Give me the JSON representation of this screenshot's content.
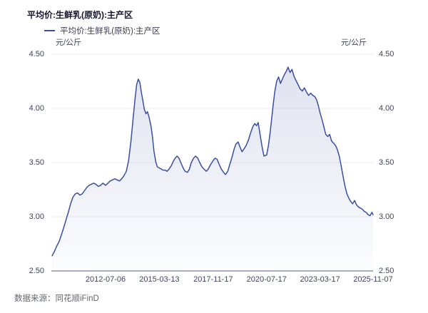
{
  "header": {
    "title": "平均价:生鲜乳(原奶):主产区"
  },
  "legend": {
    "label": "平均价:生鲜乳(原奶):主产区"
  },
  "footer": {
    "source": "数据来源：同花顺iFinD"
  },
  "colors": {
    "line": "#3A4F9E",
    "fill_top": "rgba(61,82,160,0.16)",
    "fill_bottom": "rgba(61,82,160,0.015)",
    "grid": "#EBEDF4",
    "axis": "#A8AEC0",
    "tick_text": "#40445A"
  },
  "chart_data": {
    "type": "area",
    "title": "平均价:生鲜乳(原奶):主产区",
    "ylabel": "元/公斤",
    "xlabel": "",
    "ylim": [
      2.5,
      4.5
    ],
    "grid": true,
    "legend_position": "top-left",
    "y_ticks": [
      "4.50",
      "4.00",
      "3.50",
      "3.00",
      "2.50"
    ],
    "y_tick_values": [
      4.5,
      4.0,
      3.5,
      3.0,
      2.5
    ],
    "x_ticks": [
      "2012-07-06",
      "2015-03-13",
      "2017-11-17",
      "2020-07-17",
      "2023-03-17",
      "2025-11-07"
    ],
    "series": [
      {
        "name": "平均价:生鲜乳(原奶):主产区",
        "points": [
          [
            "2009-11-06",
            2.64
          ],
          [
            "2009-12-18",
            2.68
          ],
          [
            "2010-01-29",
            2.73
          ],
          [
            "2010-03-12",
            2.77
          ],
          [
            "2010-04-23",
            2.83
          ],
          [
            "2010-06-04",
            2.9
          ],
          [
            "2010-07-16",
            2.97
          ],
          [
            "2010-08-27",
            3.04
          ],
          [
            "2010-10-08",
            3.12
          ],
          [
            "2010-11-19",
            3.18
          ],
          [
            "2010-12-31",
            3.21
          ],
          [
            "2011-02-11",
            3.22
          ],
          [
            "2011-03-25",
            3.2
          ],
          [
            "2011-05-06",
            3.21
          ],
          [
            "2011-06-17",
            3.24
          ],
          [
            "2011-07-29",
            3.27
          ],
          [
            "2011-09-09",
            3.29
          ],
          [
            "2011-10-21",
            3.3
          ],
          [
            "2011-12-02",
            3.31
          ],
          [
            "2012-01-13",
            3.3
          ],
          [
            "2012-02-24",
            3.28
          ],
          [
            "2012-04-06",
            3.29
          ],
          [
            "2012-05-18",
            3.31
          ],
          [
            "2012-07-06",
            3.29
          ],
          [
            "2012-08-17",
            3.31
          ],
          [
            "2012-09-28",
            3.33
          ],
          [
            "2012-11-09",
            3.34
          ],
          [
            "2012-12-21",
            3.35
          ],
          [
            "2013-02-01",
            3.34
          ],
          [
            "2013-03-15",
            3.33
          ],
          [
            "2013-04-26",
            3.35
          ],
          [
            "2013-06-07",
            3.38
          ],
          [
            "2013-07-19",
            3.42
          ],
          [
            "2013-08-30",
            3.52
          ],
          [
            "2013-10-11",
            3.7
          ],
          [
            "2013-11-22",
            3.92
          ],
          [
            "2013-12-27",
            4.1
          ],
          [
            "2014-01-24",
            4.22
          ],
          [
            "2014-02-21",
            4.27
          ],
          [
            "2014-03-21",
            4.24
          ],
          [
            "2014-04-18",
            4.15
          ],
          [
            "2014-05-16",
            4.07
          ],
          [
            "2014-06-13",
            3.99
          ],
          [
            "2014-07-11",
            3.95
          ],
          [
            "2014-08-08",
            3.97
          ],
          [
            "2014-09-05",
            3.92
          ],
          [
            "2014-10-10",
            3.84
          ],
          [
            "2014-11-07",
            3.74
          ],
          [
            "2014-12-05",
            3.6
          ],
          [
            "2015-01-09",
            3.5
          ],
          [
            "2015-02-06",
            3.46
          ],
          [
            "2015-03-13",
            3.45
          ],
          [
            "2015-04-17",
            3.44
          ],
          [
            "2015-05-22",
            3.43
          ],
          [
            "2015-06-26",
            3.43
          ],
          [
            "2015-07-31",
            3.42
          ],
          [
            "2015-09-04",
            3.44
          ],
          [
            "2015-10-16",
            3.47
          ],
          [
            "2015-11-20",
            3.51
          ],
          [
            "2015-12-25",
            3.54
          ],
          [
            "2016-01-29",
            3.56
          ],
          [
            "2016-03-04",
            3.54
          ],
          [
            "2016-04-15",
            3.49
          ],
          [
            "2016-05-20",
            3.45
          ],
          [
            "2016-06-24",
            3.42
          ],
          [
            "2016-08-05",
            3.41
          ],
          [
            "2016-09-09",
            3.44
          ],
          [
            "2016-10-14",
            3.5
          ],
          [
            "2016-11-25",
            3.54
          ],
          [
            "2016-12-30",
            3.56
          ],
          [
            "2017-02-10",
            3.54
          ],
          [
            "2017-03-17",
            3.5
          ],
          [
            "2017-04-28",
            3.46
          ],
          [
            "2017-06-02",
            3.44
          ],
          [
            "2017-07-14",
            3.42
          ],
          [
            "2017-08-18",
            3.44
          ],
          [
            "2017-09-29",
            3.48
          ],
          [
            "2017-11-17",
            3.52
          ],
          [
            "2017-12-22",
            3.54
          ],
          [
            "2018-01-26",
            3.53
          ],
          [
            "2018-03-09",
            3.48
          ],
          [
            "2018-04-13",
            3.44
          ],
          [
            "2018-05-25",
            3.41
          ],
          [
            "2018-06-29",
            3.39
          ],
          [
            "2018-08-10",
            3.42
          ],
          [
            "2018-09-14",
            3.48
          ],
          [
            "2018-10-26",
            3.55
          ],
          [
            "2018-11-30",
            3.62
          ],
          [
            "2019-01-04",
            3.67
          ],
          [
            "2019-02-15",
            3.69
          ],
          [
            "2019-03-22",
            3.64
          ],
          [
            "2019-04-26",
            3.6
          ],
          [
            "2019-06-07",
            3.63
          ],
          [
            "2019-07-12",
            3.66
          ],
          [
            "2019-08-23",
            3.71
          ],
          [
            "2019-09-27",
            3.77
          ],
          [
            "2019-11-08",
            3.83
          ],
          [
            "2019-12-13",
            3.86
          ],
          [
            "2020-01-17",
            3.84
          ],
          [
            "2020-02-14",
            3.87
          ],
          [
            "2020-03-20",
            3.76
          ],
          [
            "2020-04-24",
            3.65
          ],
          [
            "2020-05-29",
            3.56
          ],
          [
            "2020-07-17",
            3.57
          ],
          [
            "2020-08-21",
            3.66
          ],
          [
            "2020-09-25",
            3.8
          ],
          [
            "2020-11-06",
            4.0
          ],
          [
            "2020-12-11",
            4.15
          ],
          [
            "2021-01-15",
            4.25
          ],
          [
            "2021-02-19",
            4.29
          ],
          [
            "2021-03-26",
            4.23
          ],
          [
            "2021-04-30",
            4.27
          ],
          [
            "2021-06-04",
            4.31
          ],
          [
            "2021-07-09",
            4.34
          ],
          [
            "2021-08-13",
            4.38
          ],
          [
            "2021-09-17",
            4.33
          ],
          [
            "2021-10-22",
            4.36
          ],
          [
            "2021-11-26",
            4.3
          ],
          [
            "2021-12-31",
            4.26
          ],
          [
            "2022-02-11",
            4.22
          ],
          [
            "2022-03-18",
            4.18
          ],
          [
            "2022-04-29",
            4.16
          ],
          [
            "2022-06-03",
            4.19
          ],
          [
            "2022-07-15",
            4.15
          ],
          [
            "2022-08-19",
            4.12
          ],
          [
            "2022-09-30",
            4.14
          ],
          [
            "2022-11-04",
            4.12
          ],
          [
            "2022-12-09",
            4.11
          ],
          [
            "2023-01-13",
            4.08
          ],
          [
            "2023-02-17",
            4.02
          ],
          [
            "2023-03-17",
            3.96
          ],
          [
            "2023-04-21",
            3.9
          ],
          [
            "2023-05-26",
            3.83
          ],
          [
            "2023-06-30",
            3.76
          ],
          [
            "2023-08-04",
            3.74
          ],
          [
            "2023-09-08",
            3.76
          ],
          [
            "2023-10-13",
            3.7
          ],
          [
            "2023-11-17",
            3.68
          ],
          [
            "2023-12-22",
            3.66
          ],
          [
            "2024-01-26",
            3.62
          ],
          [
            "2024-03-01",
            3.56
          ],
          [
            "2024-04-05",
            3.47
          ],
          [
            "2024-05-10",
            3.37
          ],
          [
            "2024-06-14",
            3.28
          ],
          [
            "2024-07-19",
            3.21
          ],
          [
            "2024-08-23",
            3.17
          ],
          [
            "2024-09-27",
            3.14
          ],
          [
            "2024-11-01",
            3.12
          ],
          [
            "2024-12-06",
            3.15
          ],
          [
            "2025-01-10",
            3.11
          ],
          [
            "2025-02-14",
            3.09
          ],
          [
            "2025-03-21",
            3.08
          ],
          [
            "2025-04-25",
            3.07
          ],
          [
            "2025-05-30",
            3.05
          ],
          [
            "2025-07-04",
            3.04
          ],
          [
            "2025-08-08",
            3.02
          ],
          [
            "2025-09-12",
            3.01
          ],
          [
            "2025-10-17",
            3.04
          ],
          [
            "2025-11-07",
            3.02
          ]
        ]
      }
    ]
  }
}
